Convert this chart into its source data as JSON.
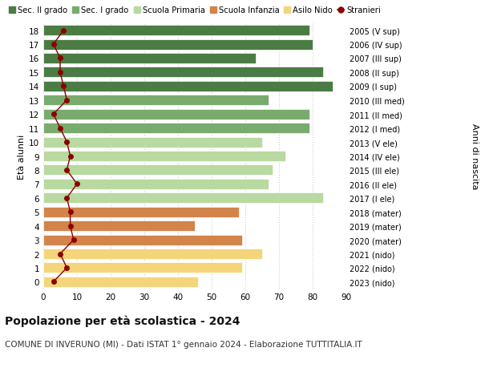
{
  "ages": [
    18,
    17,
    16,
    15,
    14,
    13,
    12,
    11,
    10,
    9,
    8,
    7,
    6,
    5,
    4,
    3,
    2,
    1,
    0
  ],
  "anni_nascita": [
    "2005 (V sup)",
    "2006 (IV sup)",
    "2007 (III sup)",
    "2008 (II sup)",
    "2009 (I sup)",
    "2010 (III med)",
    "2011 (II med)",
    "2012 (I med)",
    "2013 (V ele)",
    "2014 (IV ele)",
    "2015 (III ele)",
    "2016 (II ele)",
    "2017 (I ele)",
    "2018 (mater)",
    "2019 (mater)",
    "2020 (mater)",
    "2021 (nido)",
    "2022 (nido)",
    "2023 (nido)"
  ],
  "bar_values": [
    79,
    80,
    63,
    83,
    86,
    67,
    79,
    79,
    65,
    72,
    68,
    67,
    83,
    58,
    45,
    59,
    65,
    59,
    46
  ],
  "bar_colors": [
    "#4a7c44",
    "#4a7c44",
    "#4a7c44",
    "#4a7c44",
    "#4a7c44",
    "#7aab6e",
    "#7aab6e",
    "#7aab6e",
    "#b8d9a0",
    "#b8d9a0",
    "#b8d9a0",
    "#b8d9a0",
    "#b8d9a0",
    "#d2844a",
    "#d2844a",
    "#d2844a",
    "#f5d57a",
    "#f5d57a",
    "#f5d57a"
  ],
  "stranieri": [
    6,
    3,
    5,
    5,
    6,
    7,
    3,
    5,
    7,
    8,
    7,
    10,
    7,
    8,
    8,
    9,
    5,
    7,
    3
  ],
  "stranieri_color": "#8b0000",
  "xlabel_values": [
    0,
    10,
    20,
    30,
    40,
    50,
    60,
    70,
    80,
    90
  ],
  "xlim": [
    0,
    90
  ],
  "title": "Popolazione per età scolastica - 2024",
  "subtitle": "COMUNE DI INVERUNO (MI) - Dati ISTAT 1° gennaio 2024 - Elaborazione TUTTITALIA.IT",
  "ylabel_left": "Età alunni",
  "ylabel_right": "Anni di nascita",
  "legend_items": [
    {
      "label": "Sec. II grado",
      "color": "#4a7c44",
      "type": "patch"
    },
    {
      "label": "Sec. I grado",
      "color": "#7aab6e",
      "type": "patch"
    },
    {
      "label": "Scuola Primaria",
      "color": "#b8d9a0",
      "type": "patch"
    },
    {
      "label": "Scuola Infanzia",
      "color": "#d2844a",
      "type": "patch"
    },
    {
      "label": "Asilo Nido",
      "color": "#f5d57a",
      "type": "patch"
    },
    {
      "label": "Stranieri",
      "color": "#8b0000",
      "type": "line"
    }
  ],
  "bg_color": "#ffffff",
  "grid_color": "#cccccc",
  "bar_height": 0.75
}
